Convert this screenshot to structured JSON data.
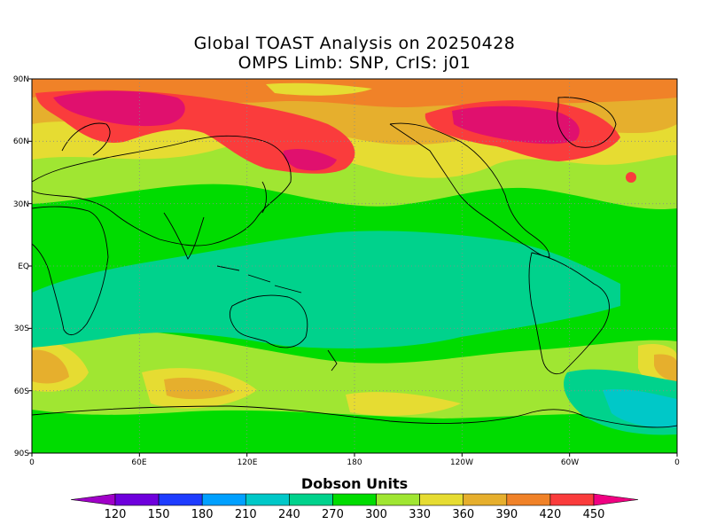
{
  "title": {
    "line1": "Global TOAST Analysis on 20250428",
    "line2": "OMPS Limb: SNP,  CrIS: j01"
  },
  "map": {
    "lat_labels": [
      "90N",
      "60N",
      "30N",
      "EQ",
      "30S",
      "60S",
      "90S"
    ],
    "lon_labels": [
      "0",
      "60E",
      "120E",
      "180",
      "120W",
      "60W",
      "0"
    ]
  },
  "colorbar": {
    "title": "Dobson Units",
    "ticks": [
      "120",
      "150",
      "180",
      "210",
      "240",
      "270",
      "300",
      "330",
      "360",
      "390",
      "420",
      "450"
    ],
    "colors": [
      "#a000c8",
      "#6e00dc",
      "#1e3cff",
      "#00a0ff",
      "#00c8c8",
      "#00d28c",
      "#00dc00",
      "#a0e632",
      "#e6dc32",
      "#e6af2d",
      "#f08228",
      "#fa3c3c",
      "#f00082"
    ]
  },
  "palette": {
    "ocean_band": "#00d28c",
    "tropics": "#00dc00",
    "midlat": "#a0e632",
    "high1": "#e6dc32",
    "high2": "#e6af2d",
    "high3": "#f08228",
    "red": "#fa3c3c",
    "magenta": "#e0106e"
  }
}
